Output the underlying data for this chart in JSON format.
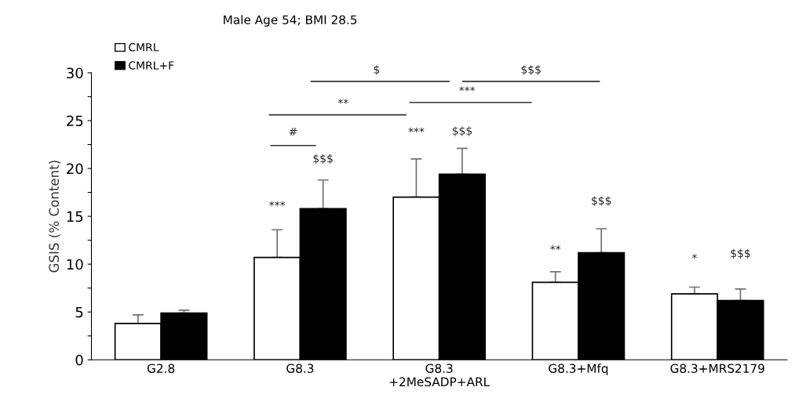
{
  "chart_data": {
    "type": "bar",
    "title": "Male Age 54; BMI 28.5",
    "ylabel": "GSIS (% Content)",
    "categories": [
      "G2.8",
      "G8.3",
      "G8.3\n+2MeSADP+ARL",
      "G8.3+Mfq",
      "G8.3+MRS2179"
    ],
    "series": [
      {
        "name": "CMRL",
        "color": "#ffffff",
        "values": [
          3.8,
          10.7,
          17.0,
          8.1,
          6.9
        ],
        "errors": [
          [
            3.8,
            4.7
          ],
          [
            10.7,
            13.6
          ],
          [
            17.0,
            21.0
          ],
          [
            8.1,
            9.2
          ],
          [
            6.9,
            7.6
          ]
        ]
      },
      {
        "name": "CMRL+F",
        "color": "#000000",
        "values": [
          4.9,
          15.8,
          19.4,
          11.2,
          6.2
        ],
        "errors": [
          [
            4.9,
            5.2
          ],
          [
            15.8,
            18.8
          ],
          [
            19.4,
            22.1
          ],
          [
            11.2,
            13.7
          ],
          [
            6.2,
            7.4
          ]
        ]
      }
    ],
    "ylim": [
      0,
      30
    ],
    "yticks": [
      0,
      {
        "value": 2.5,
        "label": null
      },
      5,
      {
        "value": 7.5,
        "label": null
      },
      10,
      {
        "value": 12.5,
        "label": null
      },
      15,
      {
        "value": 17.5,
        "label": null
      },
      20,
      {
        "value": 22.5,
        "label": null
      },
      25,
      {
        "value": 27.5,
        "label": null
      },
      30
    ],
    "annotations": [
      "***",
      "$$$",
      "***",
      "$$$",
      "**",
      "$$$",
      "*",
      "$$$",
      "#",
      "**",
      "$",
      "***",
      "$$$"
    ],
    "grid": false,
    "legend": "top left"
  }
}
